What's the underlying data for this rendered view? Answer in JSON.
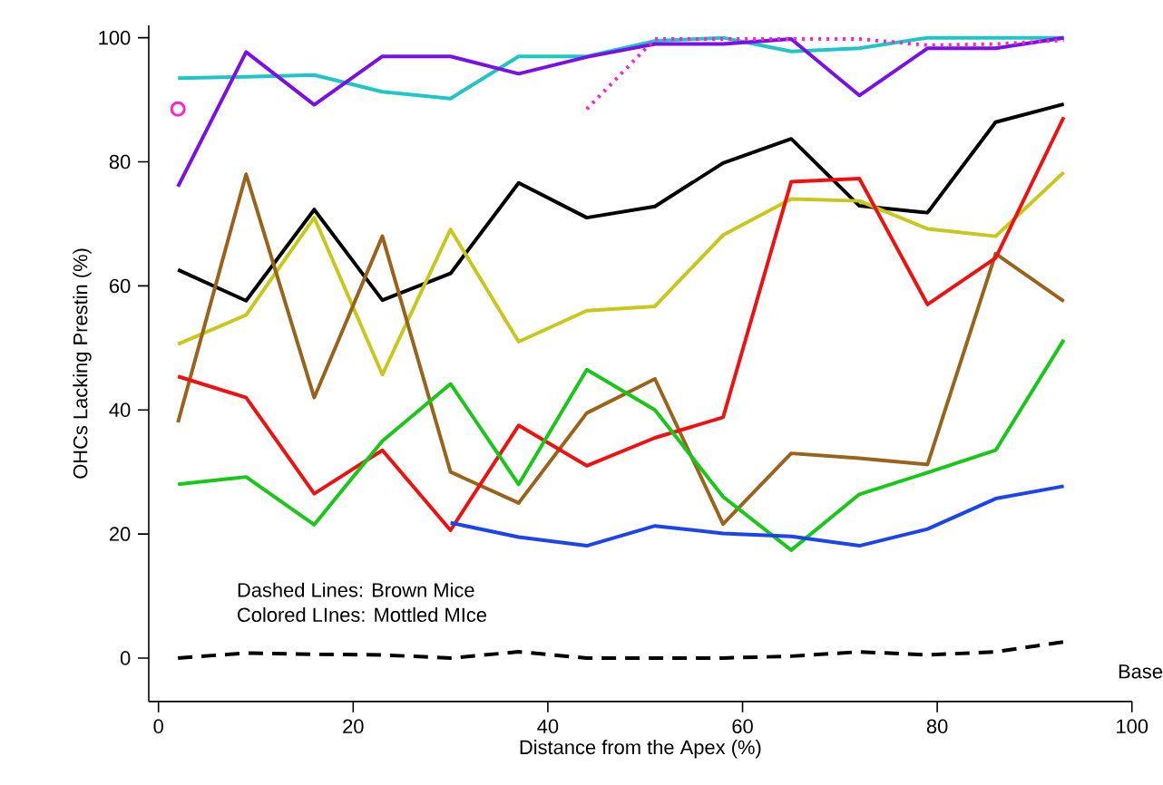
{
  "chart_data": {
    "type": "line",
    "xlabel": "Distance from the Apex (%)",
    "ylabel": "OHCs Lacking Prestin (%)",
    "xlim": [
      -1,
      100
    ],
    "ylim": [
      -7,
      102
    ],
    "xticks": [
      0,
      20,
      40,
      60,
      80,
      100
    ],
    "yticks": [
      0,
      20,
      40,
      60,
      80,
      100
    ],
    "x": [
      2,
      9,
      16,
      23,
      30,
      37,
      44,
      51,
      58,
      65,
      72,
      79,
      86,
      93
    ],
    "annotations": [
      "Dashed Lines:  Brown Mice",
      "Colored LInes:  Mottled MIce",
      "Base"
    ],
    "series": [
      {
        "color": "#1fc6c6",
        "values": [
          93.5,
          93.7,
          94,
          91.3,
          90.2,
          97,
          97,
          99.5,
          100,
          97.8,
          98.3,
          100,
          100,
          100
        ]
      },
      {
        "color": "#7a10e8",
        "values": [
          76,
          97.7,
          89.2,
          97,
          97,
          94.2,
          96.9,
          99,
          99,
          99.8,
          90.7,
          98.3,
          98.3,
          100
        ]
      },
      {
        "color": "#ff20d0",
        "line_style": "dotted",
        "values": [
          null,
          null,
          null,
          null,
          null,
          null,
          88.5,
          99.8,
          99.8,
          99.8,
          99.8,
          98.8,
          99,
          99.6
        ]
      },
      {
        "type": "scatter",
        "marker": "circle",
        "color": "#ff20d0",
        "x": [
          2
        ],
        "values": [
          88.5
        ]
      },
      {
        "color": "#000000",
        "values": [
          62.6,
          57.6,
          72.3,
          57.7,
          62,
          76.6,
          71,
          72.8,
          79.8,
          83.7,
          72.9,
          71.8,
          86.4,
          89.3
        ]
      },
      {
        "color": "#c8c81a",
        "values": [
          50.6,
          55.3,
          71,
          45.7,
          69.1,
          51,
          56,
          56.7,
          68.2,
          74,
          73.7,
          69.2,
          68,
          78.3
        ]
      },
      {
        "color": "#99631a",
        "values": [
          38,
          78,
          42,
          68,
          30,
          25,
          39.5,
          45,
          21.6,
          33,
          32.2,
          31.2,
          65.2,
          57.5
        ]
      },
      {
        "color": "#f01010",
        "values": [
          45.4,
          42,
          26.5,
          33.5,
          20.6,
          37.5,
          31,
          35.5,
          38.8,
          76.8,
          77.3,
          57,
          64.5,
          87.2
        ]
      },
      {
        "color": "#18c818",
        "values": [
          28,
          29.2,
          21.5,
          35,
          44.2,
          28,
          46.5,
          40,
          26,
          17.4,
          26.4,
          29.9,
          33.5,
          51.3
        ]
      },
      {
        "color": "#1a44f0",
        "values": [
          null,
          null,
          null,
          null,
          21.8,
          19.5,
          18.1,
          21.3,
          20.1,
          19.6,
          18.1,
          20.8,
          25.7,
          27.7
        ]
      },
      {
        "color": "#000000",
        "line_style": "dashed",
        "values": [
          0,
          0.8,
          0.6,
          0.5,
          0,
          1,
          0,
          0,
          0,
          0.3,
          1,
          0.5,
          1,
          2.6
        ]
      }
    ]
  }
}
